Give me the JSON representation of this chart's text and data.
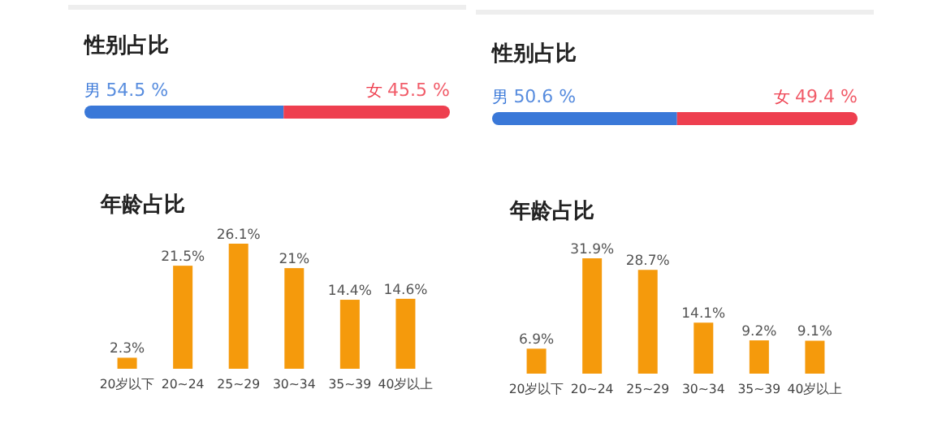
{
  "chart_data": [
    {
      "type": "bar",
      "title": "性别占比",
      "orientation": "horizontal",
      "stacked": true,
      "categories": [
        null
      ],
      "xlim": [
        0,
        100
      ],
      "tick_labels": false,
      "series": [
        {
          "name": "男",
          "color": "#3a78d8",
          "values": [
            54.5
          ],
          "value_labels": [
            "54.5 %"
          ]
        },
        {
          "name": "女",
          "color": "#ee3f4f",
          "values": [
            45.5
          ],
          "value_labels": [
            "45.5 %"
          ]
        }
      ]
    },
    {
      "type": "bar",
      "title": "性别占比",
      "orientation": "horizontal",
      "stacked": true,
      "categories": [
        null
      ],
      "xlim": [
        0,
        100
      ],
      "tick_labels": false,
      "series": [
        {
          "name": "男",
          "color": "#3a78d8",
          "values": [
            50.6
          ],
          "value_labels": [
            "50.6 %"
          ]
        },
        {
          "name": "女",
          "color": "#ee3f4f",
          "values": [
            49.4
          ],
          "value_labels": [
            "49.4 %"
          ]
        }
      ]
    },
    {
      "type": "bar",
      "title": "年龄占比",
      "categories": [
        "20岁以下",
        "20~24",
        "25~29",
        "30~34",
        "35~39",
        "40岁以上"
      ],
      "tick_labels": "x",
      "color": "#f59a0c",
      "values": [
        2.3,
        21.5,
        26.1,
        21,
        14.4,
        14.6
      ],
      "value_labels": [
        "2.3%",
        "21.5%",
        "26.1%",
        "21%",
        "14.4%",
        "14.6%"
      ]
    },
    {
      "type": "bar",
      "title": "年龄占比",
      "categories": [
        "20岁以下",
        "20~24",
        "25~29",
        "30~34",
        "35~39",
        "40岁以上"
      ],
      "tick_labels": "x",
      "color": "#f59a0c",
      "values": [
        6.9,
        31.9,
        28.7,
        14.1,
        9.2,
        9.1
      ],
      "value_labels": [
        "6.9%",
        "31.9%",
        "28.7%",
        "14.1%",
        "9.2%",
        "9.1%"
      ]
    }
  ]
}
